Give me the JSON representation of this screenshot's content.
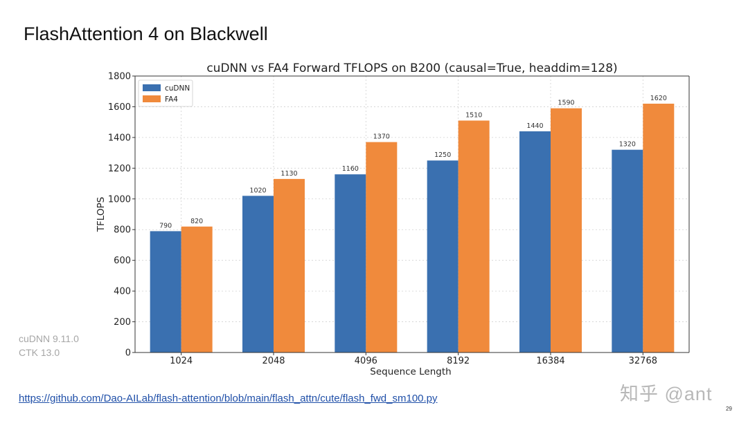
{
  "slide": {
    "title": "FlashAttention 4 on Blackwell",
    "env_lines": [
      "cuDNN 9.11.0",
      "CTK 13.0"
    ],
    "link": "https://github.com/Dao-AILab/flash-attention/blob/main/flash_attn/cute/flash_fwd_sm100.py",
    "watermark": "知乎 @ant",
    "page_number": "29"
  },
  "chart_data": {
    "type": "bar",
    "title": "cuDNN vs FA4 Forward TFLOPS on B200 (causal=True, headdim=128)",
    "xlabel": "Sequence Length",
    "ylabel": "TFLOPS",
    "ylim": [
      0,
      1800
    ],
    "yticks": [
      0,
      200,
      400,
      600,
      800,
      1000,
      1200,
      1400,
      1600,
      1800
    ],
    "grid": true,
    "legend_position": "top-left",
    "categories": [
      "1024",
      "2048",
      "4096",
      "8192",
      "16384",
      "32768"
    ],
    "series": [
      {
        "name": "cuDNN",
        "color": "#3a70b0",
        "values": [
          790,
          1020,
          1160,
          1250,
          1440,
          1320
        ]
      },
      {
        "name": "FA4",
        "color": "#f08a3c",
        "values": [
          820,
          1130,
          1370,
          1510,
          1590,
          1620
        ]
      }
    ]
  }
}
